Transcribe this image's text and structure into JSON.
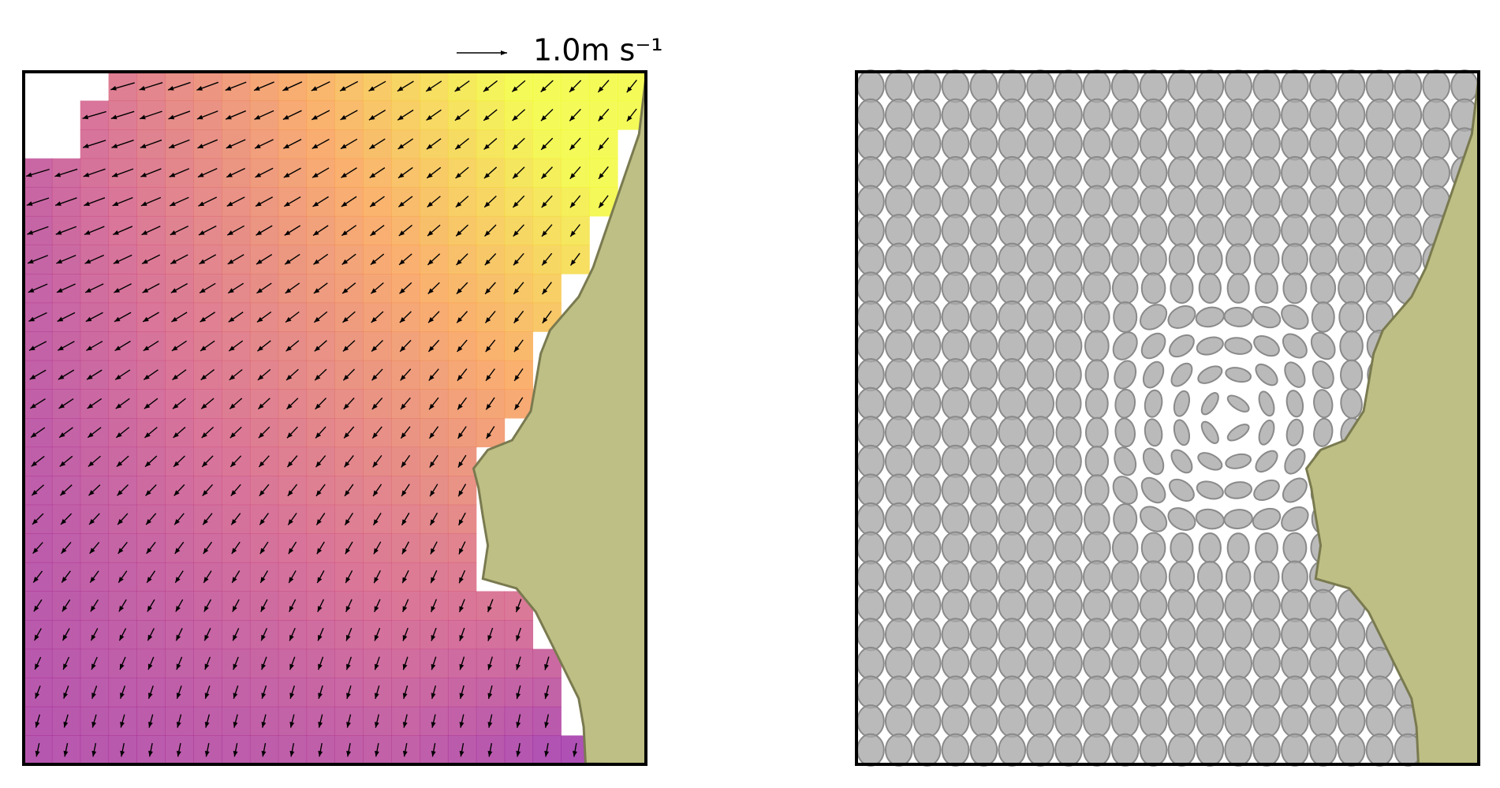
{
  "quiver_key": {
    "value": 1.0,
    "label": "1.0m s⁻¹"
  }
}
